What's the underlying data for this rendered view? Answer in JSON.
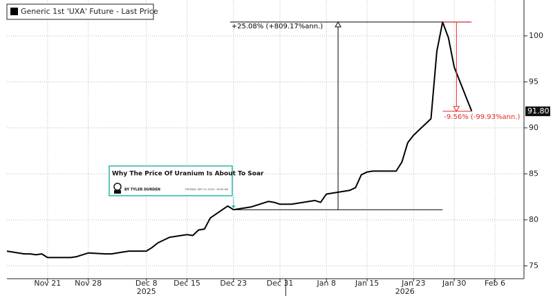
{
  "chart_data": {
    "type": "line",
    "series": [
      {
        "name": "Generic 1st 'UXA' Future - Last Price",
        "color": "#000000",
        "values": [
          76.6,
          76.3,
          76.3,
          76.2,
          76.3,
          75.9,
          75.9,
          75.9,
          76.0,
          76.4,
          76.3,
          76.3,
          76.4,
          76.5,
          76.6,
          76.6,
          77.0,
          77.5,
          77.8,
          78.1,
          78.4,
          78.3,
          78.9,
          79.0,
          80.2,
          81.5,
          81.1,
          81.2,
          81.4,
          82.0,
          81.9,
          81.7,
          81.7,
          82.0,
          82.1,
          81.9,
          82.8,
          82.9,
          83.2,
          83.5,
          84.9,
          85.2,
          85.3,
          85.3,
          86.3,
          88.4,
          89.2,
          91.0,
          98.3,
          101.5,
          99.8,
          96.6,
          91.8
        ]
      }
    ],
    "x": [
      "2025-11-14",
      "2025-11-17",
      "2025-11-18",
      "2025-11-19",
      "2025-11-20",
      "2025-11-21",
      "2025-11-24",
      "2025-11-25",
      "2025-11-26",
      "2025-11-28",
      "2025-12-01",
      "2025-12-02",
      "2025-12-03",
      "2025-12-04",
      "2025-12-05",
      "2025-12-08",
      "2025-12-09",
      "2025-12-10",
      "2025-12-11",
      "2025-12-12",
      "2025-12-15",
      "2025-12-16",
      "2025-12-17",
      "2025-12-18",
      "2025-12-19",
      "2025-12-22",
      "2025-12-23",
      "2025-12-24",
      "2025-12-26",
      "2025-12-29",
      "2025-12-30",
      "2025-12-31",
      "2026-01-02",
      "2026-01-05",
      "2026-01-06",
      "2026-01-07",
      "2026-01-08",
      "2026-01-09",
      "2026-01-12",
      "2026-01-13",
      "2026-01-14",
      "2026-01-15",
      "2026-01-16",
      "2026-01-20",
      "2026-01-21",
      "2026-01-22",
      "2026-01-23",
      "2026-01-26",
      "2026-01-27",
      "2026-01-28",
      "2026-01-29",
      "2026-01-30",
      "2026-02-02"
    ],
    "xlim": [
      "2025-11-14",
      "2026-02-11"
    ],
    "xticks": [
      {
        "value": "2025-11-21",
        "label": "Nov 21"
      },
      {
        "value": "2025-11-28",
        "label": "Nov 28"
      },
      {
        "value": "2025-12-08",
        "label": "Dec 8"
      },
      {
        "value": "2025-12-15",
        "label": "Dec 15"
      },
      {
        "value": "2025-12-23",
        "label": "Dec 23"
      },
      {
        "value": "2025-12-31",
        "label": "Dec 31"
      },
      {
        "value": "2026-01-08",
        "label": "Jan 8"
      },
      {
        "value": "2026-01-15",
        "label": "Jan 15"
      },
      {
        "value": "2026-01-23",
        "label": "Jan 23"
      },
      {
        "value": "2026-01-30",
        "label": "Jan 30"
      },
      {
        "value": "2026-02-06",
        "label": "Feb 6"
      }
    ],
    "x_year_labels": [
      "2025",
      "2026"
    ],
    "ylim": [
      73.6,
      103.9
    ],
    "yticks": [
      75,
      80,
      85,
      90,
      95,
      100
    ],
    "grid": true,
    "last_label": "91.80",
    "annotations": [
      {
        "text": "+25.08% (+809.17%ann.)",
        "color": "#000000",
        "from": "2025-12-23",
        "to": "2026-01-28"
      },
      {
        "text": "-9.56% (-99.93%ann.)",
        "color": "#e8262b",
        "from": "2026-01-28",
        "to": "2026-02-02"
      }
    ],
    "article": {
      "title": "Why The Price Of Uranium Is About To Soar",
      "byline": "BY TYLER DURDEN",
      "date": "TUESDAY, DEC 23, 2025 - 09:45 AM",
      "color": "#2ab5a5"
    }
  }
}
